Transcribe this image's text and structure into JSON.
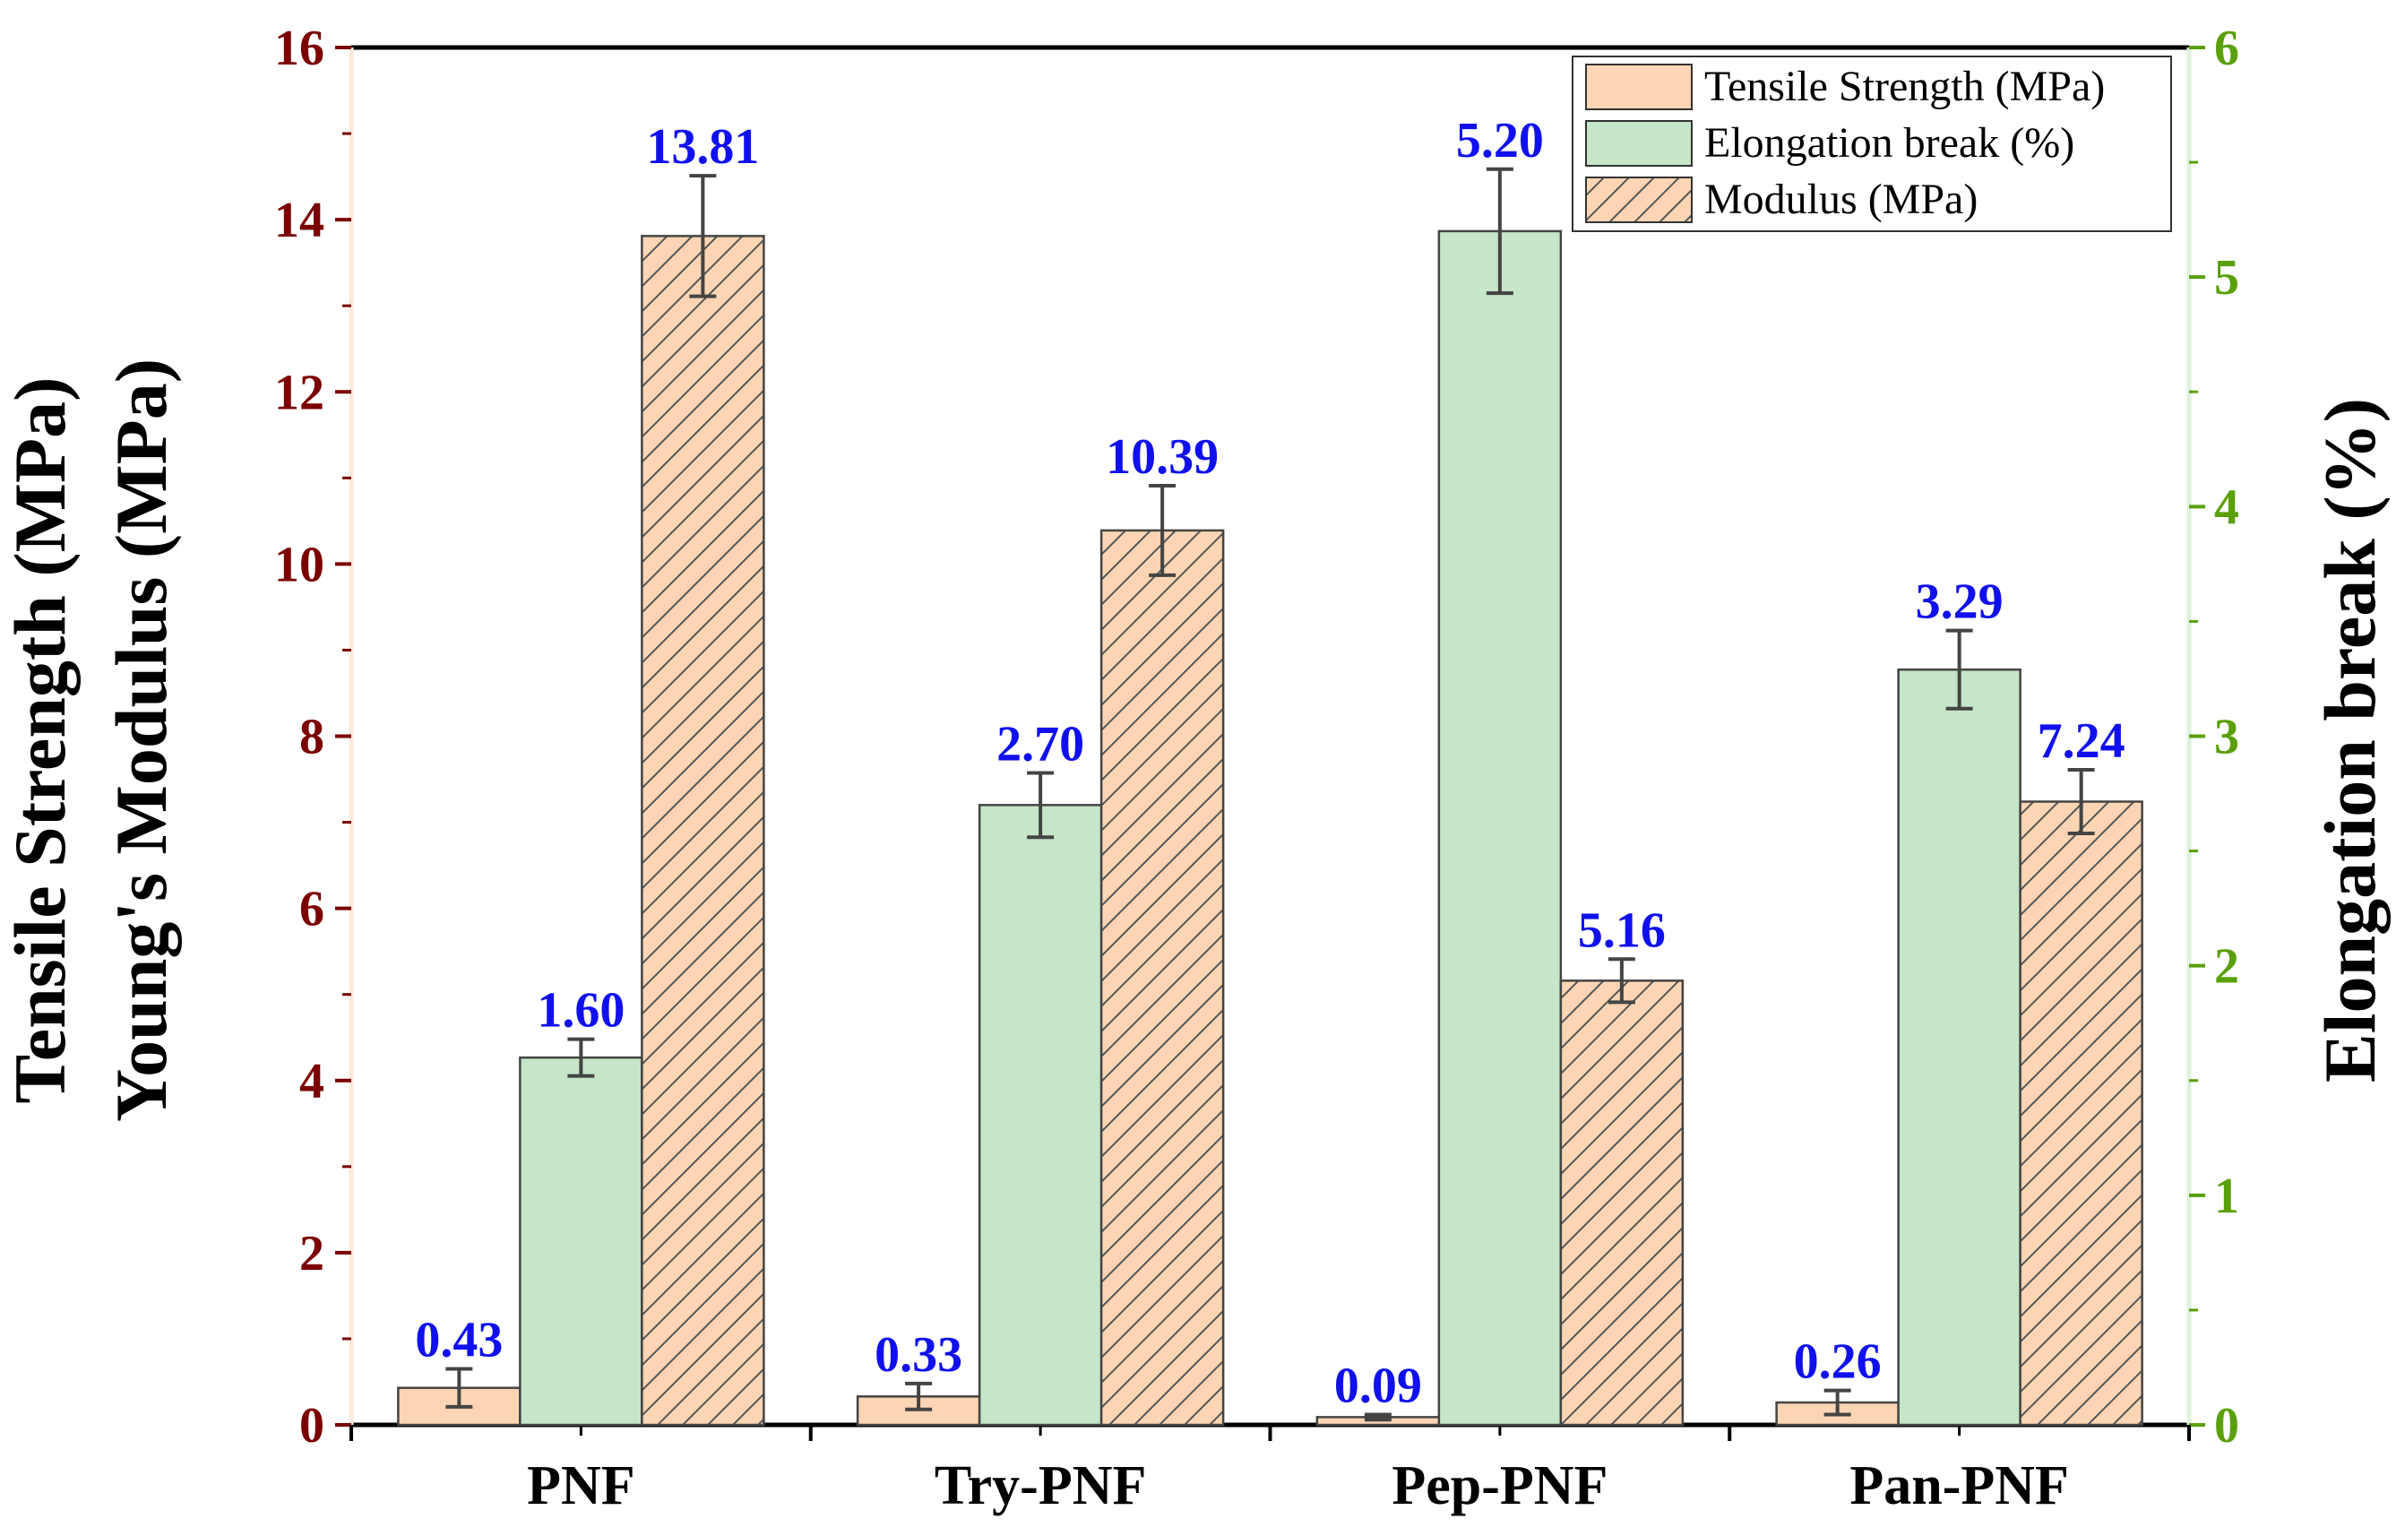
{
  "chart_data": {
    "type": "bar",
    "categories": [
      "PNF",
      "Try-PNF",
      "Pep-PNF",
      "Pan-PNF"
    ],
    "series": [
      {
        "name": "Tensile Strength (MPa)",
        "axis": "left",
        "color": "#fcd5b4",
        "pattern": "solid",
        "values": [
          0.43,
          0.33,
          0.09,
          0.26
        ],
        "errors": [
          0.22,
          0.15,
          0.03,
          0.14
        ],
        "labels": [
          "0.43",
          "0.33",
          "0.09",
          "0.26"
        ]
      },
      {
        "name": "Elongation break (%)",
        "axis": "right",
        "color": "#c5e6c8",
        "pattern": "solid",
        "values": [
          1.6,
          2.7,
          5.2,
          3.29
        ],
        "errors": [
          0.08,
          0.14,
          0.27,
          0.17
        ],
        "labels": [
          "1.60",
          "2.70",
          "5.20",
          "3.29"
        ]
      },
      {
        "name": "Modulus (MPa)",
        "axis": "left",
        "color": "#fcd5b4",
        "pattern": "hatched",
        "values": [
          13.81,
          10.39,
          5.16,
          7.24
        ],
        "errors": [
          0.7,
          0.52,
          0.25,
          0.37
        ],
        "labels": [
          "13.81",
          "10.39",
          "5.16",
          "7.24"
        ]
      }
    ],
    "y_left": {
      "label_line1": "Tensile Strength (MPa)",
      "label_line2": "Young's Modulus (MPa)",
      "ylim": [
        0,
        16
      ],
      "ticks": [
        0,
        2,
        4,
        6,
        8,
        10,
        12,
        14,
        16
      ],
      "tick_color": "#7b0000"
    },
    "y_right": {
      "label": "Elongation break (%)",
      "ylim": [
        0,
        6
      ],
      "ticks": [
        0,
        1,
        2,
        3,
        4,
        5,
        6
      ],
      "tick_color": "#5aa00a"
    },
    "legend_position": "top-right",
    "grid": false
  }
}
